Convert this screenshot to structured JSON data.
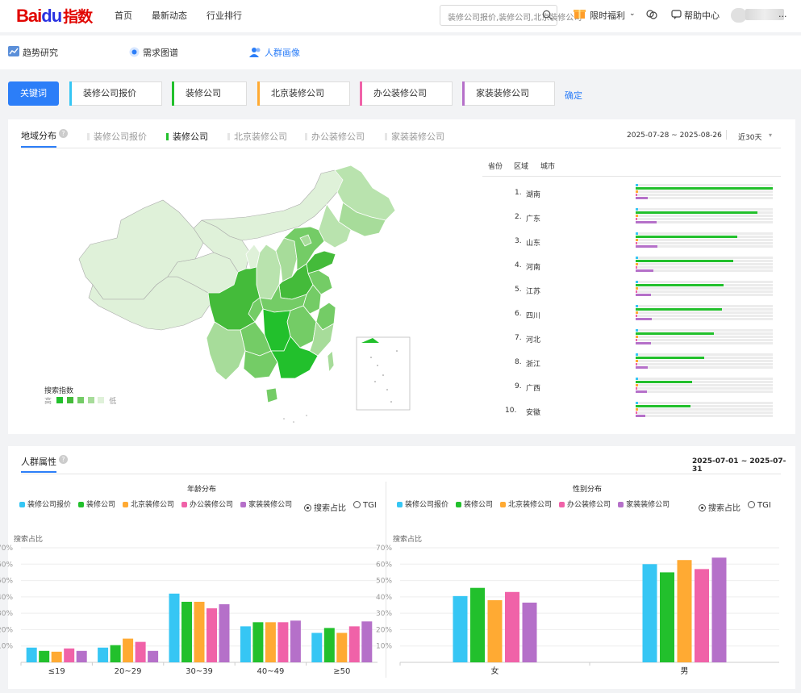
{
  "header": {
    "logo_main": "Bai",
    "logo_du": "du",
    "logo_suffix": "指数",
    "nav": [
      "首页",
      "最新动态",
      "行业排行"
    ],
    "search_placeholder": "装修公司报价,装修公司,北京装修公司",
    "promo": "限时福利",
    "help": "帮助中心",
    "user_suffix": "..."
  },
  "subnav": [
    "趋势研究",
    "需求图谱",
    "人群画像"
  ],
  "keywords": {
    "label": "关键词",
    "items": [
      {
        "text": "装修公司报价",
        "color": "#36c6f4"
      },
      {
        "text": "装修公司",
        "color": "#22c02c"
      },
      {
        "text": "北京装修公司",
        "color": "#ffaa33"
      },
      {
        "text": "办公装修公司",
        "color": "#f062a8"
      },
      {
        "text": "家装装修公司",
        "color": "#b570c9"
      }
    ],
    "confirm": "确定"
  },
  "region": {
    "title": "地域分布",
    "tabs": [
      "装修公司报价",
      "装修公司",
      "北京装修公司",
      "办公装修公司",
      "家装装修公司"
    ],
    "active_tab": 1,
    "date_range": "2025-07-28 ~ 2025-08-26",
    "period": "近30天",
    "subtabs": [
      "省份",
      "区域",
      "城市"
    ],
    "legend_title": "搜索指数",
    "legend_high": "高",
    "legend_low": "低",
    "rank": [
      {
        "n": "1.",
        "name": "湖南",
        "v": [
          0.02,
          1.0,
          0.02,
          0.01,
          0.09
        ]
      },
      {
        "n": "2.",
        "name": "广东",
        "v": [
          0.02,
          0.89,
          0.02,
          0.01,
          0.15
        ]
      },
      {
        "n": "3.",
        "name": "山东",
        "v": [
          0.02,
          0.74,
          0.02,
          0.01,
          0.16
        ]
      },
      {
        "n": "4.",
        "name": "河南",
        "v": [
          0.02,
          0.71,
          0.02,
          0.01,
          0.13
        ]
      },
      {
        "n": "5.",
        "name": "江苏",
        "v": [
          0.02,
          0.64,
          0.02,
          0.01,
          0.11
        ]
      },
      {
        "n": "6.",
        "name": "四川",
        "v": [
          0.02,
          0.63,
          0.02,
          0.01,
          0.12
        ]
      },
      {
        "n": "7.",
        "name": "河北",
        "v": [
          0.02,
          0.57,
          0.02,
          0.01,
          0.11
        ]
      },
      {
        "n": "8.",
        "name": "浙江",
        "v": [
          0.02,
          0.5,
          0.02,
          0.01,
          0.09
        ]
      },
      {
        "n": "9.",
        "name": "广西",
        "v": [
          0.02,
          0.41,
          0.02,
          0.01,
          0.08
        ]
      },
      {
        "n": "10.",
        "name": "安徽",
        "v": [
          0.02,
          0.4,
          0.02,
          0.01,
          0.07
        ]
      }
    ]
  },
  "crowd": {
    "title": "人群属性",
    "date_range": "2025-07-01 ~ 2025-07-31",
    "radio": [
      "搜索占比",
      "TGI"
    ]
  },
  "colors": {
    "s1": "#36c6f4",
    "s2": "#22c02c",
    "s3": "#ffaa33",
    "s4": "#f062a8",
    "s5": "#b570c9",
    "accent": "#2c7ef8"
  },
  "chart_data": [
    {
      "type": "bar",
      "title": "年龄分布",
      "ylabel": "搜索占比",
      "categories": [
        "≤19",
        "20~29",
        "30~39",
        "40~49",
        "≥50"
      ],
      "ylim": [
        0,
        70
      ],
      "yticks": [
        "10%",
        "20%",
        "30%",
        "40%",
        "50%",
        "60%",
        "70%"
      ],
      "series": [
        {
          "name": "装修公司报价",
          "values": [
            9,
            9,
            42,
            22,
            18
          ]
        },
        {
          "name": "装修公司",
          "values": [
            7,
            10.5,
            37,
            24.5,
            21
          ]
        },
        {
          "name": "北京装修公司",
          "values": [
            6.5,
            14.5,
            37,
            24.5,
            18
          ]
        },
        {
          "name": "办公装修公司",
          "values": [
            8.5,
            12.5,
            33,
            24.5,
            22
          ]
        },
        {
          "name": "家装装修公司",
          "values": [
            7,
            7,
            35.5,
            25.5,
            25
          ]
        }
      ]
    },
    {
      "type": "bar",
      "title": "性别分布",
      "ylabel": "搜索占比",
      "categories": [
        "女",
        "男"
      ],
      "ylim": [
        0,
        70
      ],
      "yticks": [
        "10%",
        "20%",
        "30%",
        "40%",
        "50%",
        "60%",
        "70%"
      ],
      "series": [
        {
          "name": "装修公司报价",
          "values": [
            40.5,
            60
          ]
        },
        {
          "name": "装修公司",
          "values": [
            45.5,
            55
          ]
        },
        {
          "name": "北京装修公司",
          "values": [
            38,
            62.5
          ]
        },
        {
          "name": "办公装修公司",
          "values": [
            43,
            57
          ]
        },
        {
          "name": "家装装修公司",
          "values": [
            36.5,
            64
          ]
        }
      ]
    }
  ]
}
